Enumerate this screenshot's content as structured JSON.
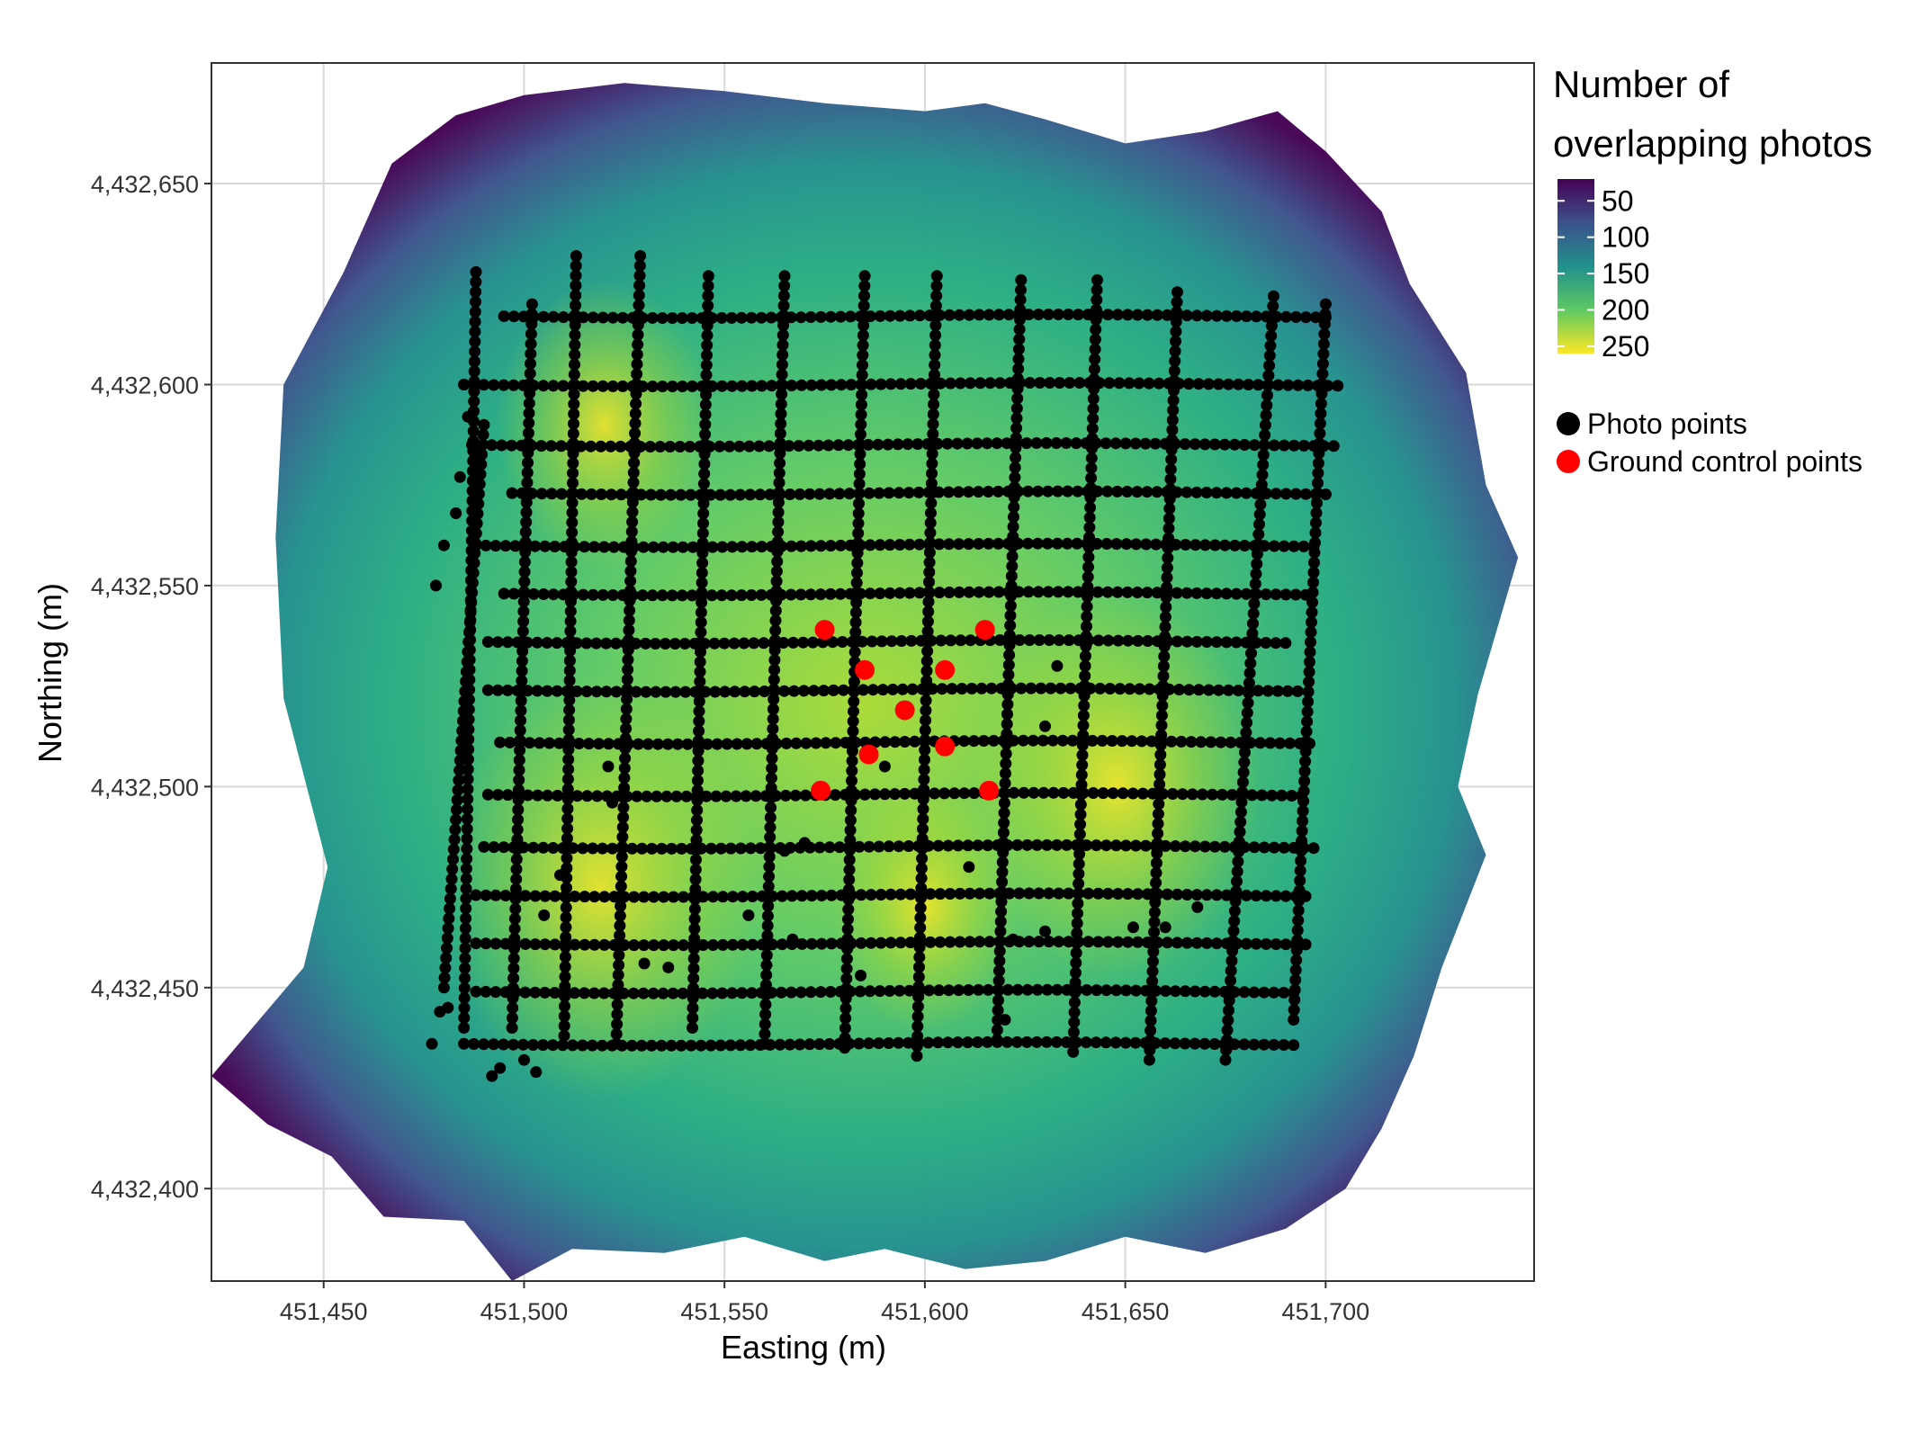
{
  "chart_data": {
    "type": "heatmap",
    "xlabel": "Easting (m)",
    "ylabel": "Northing (m)",
    "xlim": [
      451422,
      451752
    ],
    "ylim": [
      4432377,
      4432680
    ],
    "x_ticks": [
      451450,
      451500,
      451550,
      451600,
      451650,
      451700
    ],
    "x_tick_labels": [
      "451,450",
      "451,500",
      "451,550",
      "451,600",
      "451,650",
      "451,700"
    ],
    "y_ticks": [
      4432400,
      4432450,
      4432500,
      4432550,
      4432600,
      4432650
    ],
    "y_tick_labels": [
      "4,432,400",
      "4,432,450",
      "4,432,500",
      "4,432,550",
      "4,432,600",
      "4,432,650"
    ],
    "grid": true,
    "fill_scale": {
      "title_line1": "Number of",
      "title_line2": "overlapping photos",
      "min": 20,
      "max": 260,
      "breaks": [
        50,
        100,
        150,
        200,
        250
      ],
      "break_labels": [
        "50",
        "100",
        "150",
        "200",
        "250"
      ],
      "palette": [
        "#440154",
        "#3b528b",
        "#21908d",
        "#5dc963",
        "#fde725"
      ]
    },
    "coverage_outline": [
      [
        451422,
        4432428
      ],
      [
        451445,
        4432455
      ],
      [
        451451,
        4432480
      ],
      [
        451440,
        4432522
      ],
      [
        451438,
        4432562
      ],
      [
        451440,
        4432600
      ],
      [
        451455,
        4432628
      ],
      [
        451467,
        4432655
      ],
      [
        451483,
        4432667
      ],
      [
        451500,
        4432672
      ],
      [
        451525,
        4432675
      ],
      [
        451550,
        4432673
      ],
      [
        451575,
        4432670
      ],
      [
        451600,
        4432668
      ],
      [
        451615,
        4432670
      ],
      [
        451630,
        4432666
      ],
      [
        451650,
        4432660
      ],
      [
        451670,
        4432663
      ],
      [
        451688,
        4432668
      ],
      [
        451700,
        4432658
      ],
      [
        451714,
        4432643
      ],
      [
        451721,
        4432625
      ],
      [
        451735,
        4432603
      ],
      [
        451740,
        4432575
      ],
      [
        451748,
        4432557
      ],
      [
        451738,
        4432523
      ],
      [
        451733,
        4432500
      ],
      [
        451740,
        4432483
      ],
      [
        451729,
        4432455
      ],
      [
        451722,
        4432433
      ],
      [
        451714,
        4432415
      ],
      [
        451705,
        4432400
      ],
      [
        451690,
        4432390
      ],
      [
        451670,
        4432384
      ],
      [
        451650,
        4432388
      ],
      [
        451630,
        4432382
      ],
      [
        451610,
        4432380
      ],
      [
        451590,
        4432385
      ],
      [
        451575,
        4432382
      ],
      [
        451555,
        4432388
      ],
      [
        451535,
        4432384
      ],
      [
        451512,
        4432385
      ],
      [
        451497,
        4432377
      ],
      [
        451485,
        4432392
      ],
      [
        451465,
        4432393
      ],
      [
        451452,
        4432408
      ],
      [
        451436,
        4432416
      ]
    ],
    "hotspots": [
      {
        "x": 451519,
        "y": 4432475,
        "count": 250
      },
      {
        "x": 451648,
        "y": 4432500,
        "count": 240
      },
      {
        "x": 451520,
        "y": 4432590,
        "count": 215
      },
      {
        "x": 451600,
        "y": 4432470,
        "count": 205
      }
    ],
    "photo_flight_lines": {
      "vertical_lines": [
        {
          "x1": 451497,
          "y1": 4432440,
          "x2": 451502,
          "y2": 4432620
        },
        {
          "x1": 451510,
          "y1": 4432438,
          "x2": 451513,
          "y2": 4432632
        },
        {
          "x1": 451523,
          "y1": 4432436,
          "x2": 451529,
          "y2": 4432632
        },
        {
          "x1": 451542,
          "y1": 4432440,
          "x2": 451546,
          "y2": 4432627
        },
        {
          "x1": 451560,
          "y1": 4432436,
          "x2": 451565,
          "y2": 4432627
        },
        {
          "x1": 451580,
          "y1": 4432435,
          "x2": 451585,
          "y2": 4432627
        },
        {
          "x1": 451598,
          "y1": 4432433,
          "x2": 451603,
          "y2": 4432627
        },
        {
          "x1": 451618,
          "y1": 4432437,
          "x2": 451624,
          "y2": 4432626
        },
        {
          "x1": 451637,
          "y1": 4432434,
          "x2": 451643,
          "y2": 4432626
        },
        {
          "x1": 451656,
          "y1": 4432432,
          "x2": 451663,
          "y2": 4432623
        },
        {
          "x1": 451675,
          "y1": 4432432,
          "x2": 451687,
          "y2": 4432622
        },
        {
          "x1": 451692,
          "y1": 4432442,
          "x2": 451700,
          "y2": 4432620
        },
        {
          "x1": 451485,
          "y1": 4432440,
          "x2": 451488,
          "y2": 4432628
        },
        {
          "x1": 451480,
          "y1": 4432450,
          "x2": 451490,
          "y2": 4432590
        }
      ],
      "horizontal_lines": [
        {
          "y": 4432617,
          "x1": 451495,
          "x2": 451700
        },
        {
          "y": 4432600,
          "x1": 451485,
          "x2": 451703
        },
        {
          "y": 4432585,
          "x1": 451487,
          "x2": 451702
        },
        {
          "y": 4432573,
          "x1": 451497,
          "x2": 451700
        },
        {
          "y": 4432560,
          "x1": 451488,
          "x2": 451697
        },
        {
          "y": 4432548,
          "x1": 451495,
          "x2": 451695
        },
        {
          "y": 4432536,
          "x1": 451491,
          "x2": 451690
        },
        {
          "y": 4432524,
          "x1": 451491,
          "x2": 451693
        },
        {
          "y": 4432511,
          "x1": 451494,
          "x2": 451696
        },
        {
          "y": 4432498,
          "x1": 451491,
          "x2": 451694
        },
        {
          "y": 4432485,
          "x1": 451490,
          "x2": 451697
        },
        {
          "y": 4432473,
          "x1": 451488,
          "x2": 451695
        },
        {
          "y": 4432461,
          "x1": 451488,
          "x2": 451695
        },
        {
          "y": 4432449,
          "x1": 451488,
          "x2": 451692
        },
        {
          "y": 4432436,
          "x1": 451485,
          "x2": 451692
        }
      ],
      "scattered": [
        [
          451478,
          4432550
        ],
        [
          451480,
          4432560
        ],
        [
          451483,
          4432568
        ],
        [
          451484,
          4432577
        ],
        [
          451486,
          4432592
        ],
        [
          451485,
          4432600
        ],
        [
          451477,
          4432436
        ],
        [
          451479,
          4432444
        ],
        [
          451481,
          4432445
        ],
        [
          451492,
          4432428
        ],
        [
          451494,
          4432430
        ],
        [
          451500,
          4432432
        ],
        [
          451503,
          4432429
        ],
        [
          451509,
          4432478
        ],
        [
          451521,
          4432505
        ],
        [
          451522,
          4432496
        ],
        [
          451505,
          4432468
        ],
        [
          451530,
          4432456
        ],
        [
          451536,
          4432455
        ],
        [
          451556,
          4432468
        ],
        [
          451565,
          4432484
        ],
        [
          451570,
          4432486
        ],
        [
          451585,
          4432498
        ],
        [
          451590,
          4432505
        ],
        [
          451611,
          4432480
        ],
        [
          451630,
          4432515
        ],
        [
          451633,
          4432530
        ],
        [
          451652,
          4432465
        ],
        [
          451660,
          4432465
        ],
        [
          451668,
          4432470
        ],
        [
          451630,
          4432464
        ],
        [
          451622,
          4432462
        ],
        [
          451567,
          4432462
        ],
        [
          451584,
          4432453
        ],
        [
          451620,
          4432442
        ]
      ]
    },
    "ground_control_points": [
      {
        "x": 451575,
        "y": 4432539
      },
      {
        "x": 451615,
        "y": 4432539
      },
      {
        "x": 451585,
        "y": 4432529
      },
      {
        "x": 451605,
        "y": 4432529
      },
      {
        "x": 451595,
        "y": 4432519
      },
      {
        "x": 451586,
        "y": 4432508
      },
      {
        "x": 451605,
        "y": 4432510
      },
      {
        "x": 451574,
        "y": 4432499
      },
      {
        "x": 451616,
        "y": 4432499
      }
    ],
    "legend": {
      "placement": "right",
      "point_entries": [
        {
          "label": "Photo points",
          "color": "#000000"
        },
        {
          "label": "Ground control points",
          "color": "#ff0000"
        }
      ]
    },
    "colors": {
      "panel_background": "#ffffff",
      "grid": "#d9d9d9",
      "photo_points": "#000000",
      "ground_control_points": "#ff0000"
    }
  }
}
